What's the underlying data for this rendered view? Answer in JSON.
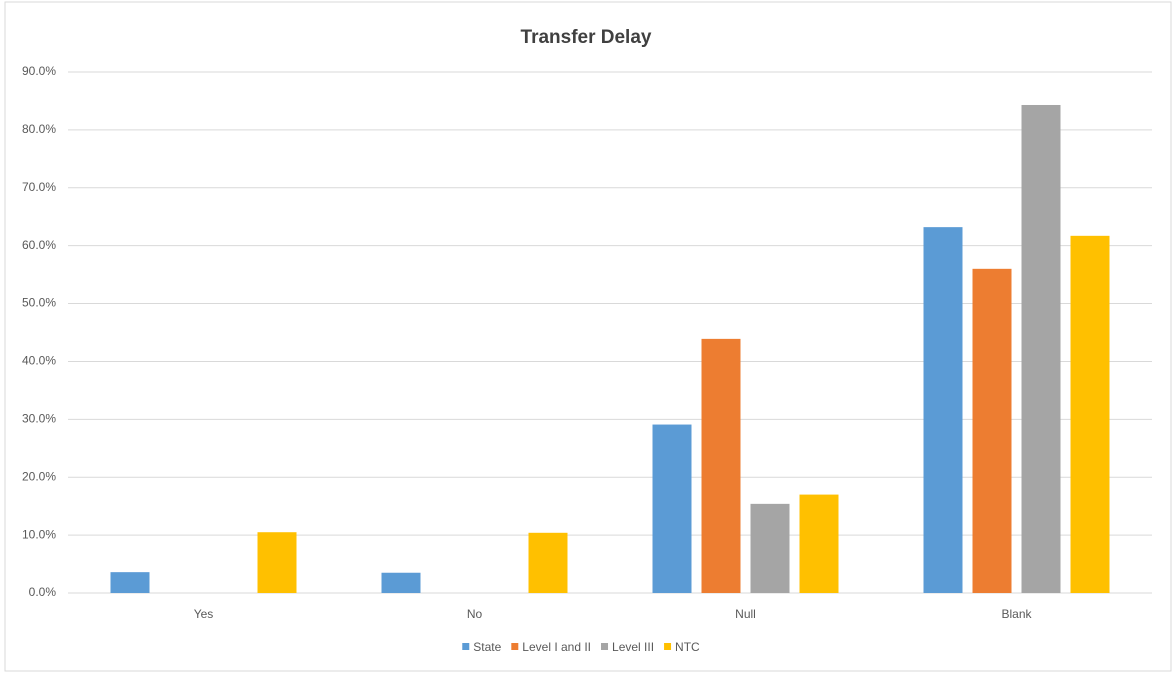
{
  "chart_data": {
    "type": "bar",
    "title": "Transfer Delay",
    "categories": [
      "Yes",
      "No",
      "Null",
      "Blank"
    ],
    "series": [
      {
        "name": "State",
        "color": "#5b9bd5",
        "values": [
          3.6,
          3.5,
          29.1,
          63.2
        ]
      },
      {
        "name": "Level I and II",
        "color": "#ed7d31",
        "values": [
          0,
          0,
          43.9,
          56.0
        ]
      },
      {
        "name": "Level III",
        "color": "#a5a5a5",
        "values": [
          0,
          0,
          15.4,
          84.3
        ]
      },
      {
        "name": "NTC",
        "color": "#ffc000",
        "values": [
          10.5,
          10.4,
          17.0,
          61.7
        ]
      }
    ],
    "ylim": [
      0,
      90
    ],
    "yticks": [
      {
        "value": 0,
        "label": "0.0%"
      },
      {
        "value": 10,
        "label": "10.0%"
      },
      {
        "value": 20,
        "label": "20.0%"
      },
      {
        "value": 30,
        "label": "30.0%"
      },
      {
        "value": 40,
        "label": "40.0%"
      },
      {
        "value": 50,
        "label": "50.0%"
      },
      {
        "value": 60,
        "label": "60.0%"
      },
      {
        "value": 70,
        "label": "70.0%"
      },
      {
        "value": 80,
        "label": "80.0%"
      },
      {
        "value": 90,
        "label": "90.0%"
      }
    ],
    "grid": true,
    "legend": "bottom"
  }
}
